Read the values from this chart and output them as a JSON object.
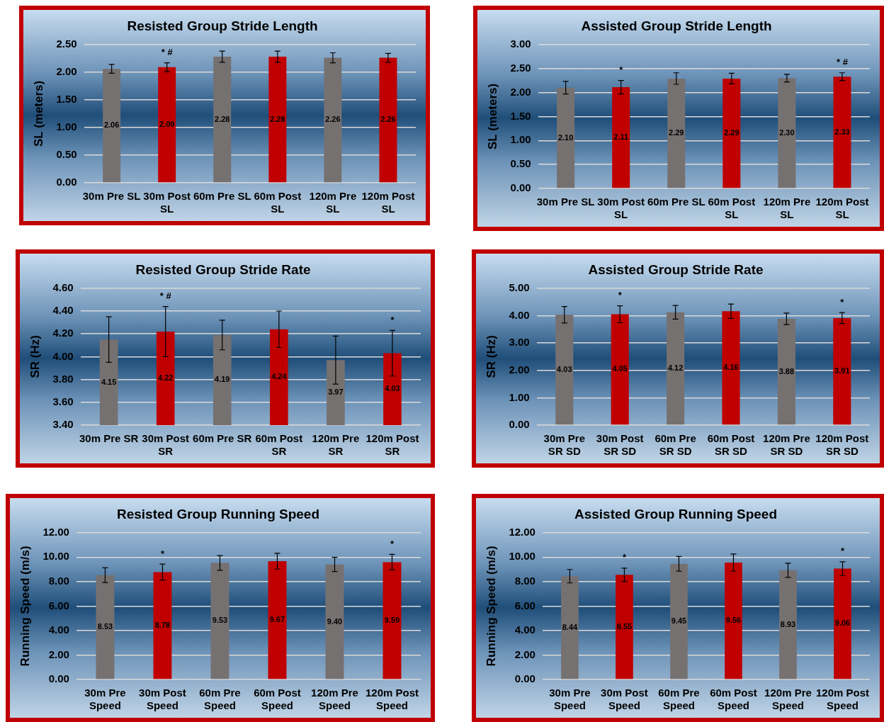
{
  "chart_data": [
    {
      "type": "bar",
      "title": "Resisted Group Stride Length",
      "ylabel": "SL (meters)",
      "categories": [
        "30m Pre SL",
        "30m Post SL",
        "60m Pre SL",
        "60m Post SL",
        "120m Pre SL",
        "120m Post SL"
      ],
      "values": [
        2.06,
        2.09,
        2.28,
        2.28,
        2.26,
        2.26
      ],
      "errors": [
        0.08,
        0.08,
        0.1,
        0.1,
        0.09,
        0.08
      ],
      "colors": [
        "#767171",
        "#c00000",
        "#767171",
        "#c00000",
        "#767171",
        "#c00000"
      ],
      "ylim": [
        0,
        2.5
      ],
      "yticks": [
        {
          "value": 0,
          "label": "0.00"
        },
        {
          "value": 0.5,
          "label": "0.50"
        },
        {
          "value": 1,
          "label": "1.00"
        },
        {
          "value": 1.5,
          "label": "1.50"
        },
        {
          "value": 2,
          "label": "2.00"
        },
        {
          "value": 2.5,
          "label": "2.50"
        }
      ],
      "grid": "y",
      "data_labels": true,
      "annotations": [
        {
          "text": "* #",
          "x": "30m Post SL",
          "y": 2.09
        }
      ]
    },
    {
      "type": "bar",
      "title": "Assisted Group Stride Length",
      "ylabel": "SL (meters)",
      "categories": [
        "30m Pre SL",
        "30m Post SL",
        "60m Pre SL",
        "60m Post SL",
        "120m Pre SL",
        "120m Post SL"
      ],
      "values": [
        2.1,
        2.11,
        2.29,
        2.29,
        2.3,
        2.33
      ],
      "errors": [
        0.13,
        0.14,
        0.12,
        0.11,
        0.08,
        0.08
      ],
      "colors": [
        "#767171",
        "#c00000",
        "#767171",
        "#c00000",
        "#767171",
        "#c00000"
      ],
      "ylim": [
        0,
        3
      ],
      "yticks": [
        {
          "value": 0,
          "label": "0.00"
        },
        {
          "value": 0.5,
          "label": "0.50"
        },
        {
          "value": 1,
          "label": "1.00"
        },
        {
          "value": 1.5,
          "label": "1.50"
        },
        {
          "value": 2,
          "label": "2.00"
        },
        {
          "value": 2.5,
          "label": "2.50"
        },
        {
          "value": 3,
          "label": "3.00"
        }
      ],
      "grid": "y",
      "data_labels": true,
      "value_labels": [
        "2.10",
        "2.11",
        "2.29",
        "2.29",
        "2.30",
        "2.33"
      ],
      "annotations": [
        {
          "text": "*",
          "x": "30m Post SL",
          "y": 2.11
        },
        {
          "text": "* #",
          "x": "120m Post SL",
          "y": 2.33
        }
      ]
    },
    {
      "type": "bar",
      "title": "Resisted Group Stride Rate",
      "ylabel": "SR (Hz)",
      "categories": [
        "30m Pre SR",
        "30m Post SR",
        "60m Pre SR",
        "60m Post SR",
        "120m Pre SR",
        "120m Post SR"
      ],
      "values": [
        4.15,
        4.22,
        4.19,
        4.24,
        3.97,
        4.03
      ],
      "errors": [
        0.2,
        0.22,
        0.13,
        0.16,
        0.21,
        0.2
      ],
      "colors": [
        "#767171",
        "#c00000",
        "#767171",
        "#c00000",
        "#767171",
        "#c00000"
      ],
      "ylim": [
        3.4,
        4.6
      ],
      "yticks": [
        {
          "value": 3.4,
          "label": "3.40"
        },
        {
          "value": 3.6,
          "label": "3.60"
        },
        {
          "value": 3.8,
          "label": "3.80"
        },
        {
          "value": 4,
          "label": "4.00"
        },
        {
          "value": 4.2,
          "label": "4.20"
        },
        {
          "value": 4.4,
          "label": "4.40"
        },
        {
          "value": 4.6,
          "label": "4.60"
        }
      ],
      "grid": "y",
      "data_labels": true,
      "annotations": [
        {
          "text": "* #",
          "x": "30m Post SR",
          "y": 4.44
        },
        {
          "text": "*",
          "x": "120m Post SR",
          "y": 4.23
        }
      ]
    },
    {
      "type": "bar",
      "title": "Assisted Group Stride Rate",
      "ylabel": "SR (Hz)",
      "categories": [
        "30m Pre SR SD",
        "30m Post SR SD",
        "60m Pre SR SD",
        "60m Post SR SD",
        "120m Pre SR SD",
        "120m Post SR SD"
      ],
      "values": [
        4.03,
        4.05,
        4.12,
        4.16,
        3.88,
        3.91
      ],
      "errors": [
        0.3,
        0.31,
        0.25,
        0.26,
        0.21,
        0.2
      ],
      "colors": [
        "#767171",
        "#c00000",
        "#767171",
        "#c00000",
        "#767171",
        "#c00000"
      ],
      "ylim": [
        0,
        5
      ],
      "yticks": [
        {
          "value": 0,
          "label": "0.00"
        },
        {
          "value": 1,
          "label": "1.00"
        },
        {
          "value": 2,
          "label": "2.00"
        },
        {
          "value": 3,
          "label": "3.00"
        },
        {
          "value": 4,
          "label": "4.00"
        },
        {
          "value": 5,
          "label": "5.00"
        }
      ],
      "grid": "y",
      "data_labels": true,
      "annotations": [
        {
          "text": "*",
          "x": "30m Post SR SD",
          "y": 4.05
        },
        {
          "text": "*",
          "x": "120m Post SR SD",
          "y": 3.91
        }
      ]
    },
    {
      "type": "bar",
      "title": "Resisted Group Running Speed",
      "ylabel": "Running Speed (m/s)",
      "categories": [
        "30m Pre Speed",
        "30m Post Speed",
        "60m Pre Speed",
        "60m Post Speed",
        "120m Pre Speed",
        "120m Post Speed"
      ],
      "values": [
        8.53,
        8.78,
        9.53,
        9.67,
        9.4,
        9.59
      ],
      "errors": [
        0.6,
        0.65,
        0.6,
        0.65,
        0.58,
        0.64
      ],
      "colors": [
        "#767171",
        "#c00000",
        "#767171",
        "#c00000",
        "#767171",
        "#c00000"
      ],
      "ylim": [
        0,
        12
      ],
      "yticks": [
        {
          "value": 0,
          "label": "0.00"
        },
        {
          "value": 2,
          "label": "2.00"
        },
        {
          "value": 4,
          "label": "4.00"
        },
        {
          "value": 6,
          "label": "6.00"
        },
        {
          "value": 8,
          "label": "8.00"
        },
        {
          "value": 10,
          "label": "10.00"
        },
        {
          "value": 12,
          "label": "12.00"
        }
      ],
      "grid": "y",
      "data_labels": true,
      "value_labels": [
        "8.53",
        "8.78",
        "9.53",
        "9.67",
        "9.40",
        "9.59"
      ],
      "annotations": [
        {
          "text": "*",
          "x": "30m Post Speed",
          "y": 8.78
        },
        {
          "text": "*",
          "x": "120m Post Speed",
          "y": 9.59
        }
      ]
    },
    {
      "type": "bar",
      "title": "Assisted Group Running Speed",
      "ylabel": "Running Speed (m/s)",
      "categories": [
        "30m Pre Speed",
        "30m Post Speed",
        "60m Pre Speed",
        "60m Post Speed",
        "120m Pre Speed",
        "120m Post Speed"
      ],
      "values": [
        8.44,
        8.55,
        9.45,
        9.56,
        8.93,
        9.06
      ],
      "errors": [
        0.55,
        0.55,
        0.6,
        0.7,
        0.58,
        0.56
      ],
      "colors": [
        "#767171",
        "#c00000",
        "#767171",
        "#c00000",
        "#767171",
        "#c00000"
      ],
      "ylim": [
        0,
        12
      ],
      "yticks": [
        {
          "value": 0,
          "label": "0.00"
        },
        {
          "value": 2,
          "label": "2.00"
        },
        {
          "value": 4,
          "label": "4.00"
        },
        {
          "value": 6,
          "label": "6.00"
        },
        {
          "value": 8,
          "label": "8.00"
        },
        {
          "value": 10,
          "label": "10.00"
        },
        {
          "value": 12,
          "label": "12.00"
        }
      ],
      "grid": "y",
      "data_labels": true,
      "annotations": [
        {
          "text": "*",
          "x": "30m Post Speed",
          "y": 8.55
        },
        {
          "text": "*",
          "x": "120m Post Speed",
          "y": 9.06
        }
      ]
    }
  ]
}
